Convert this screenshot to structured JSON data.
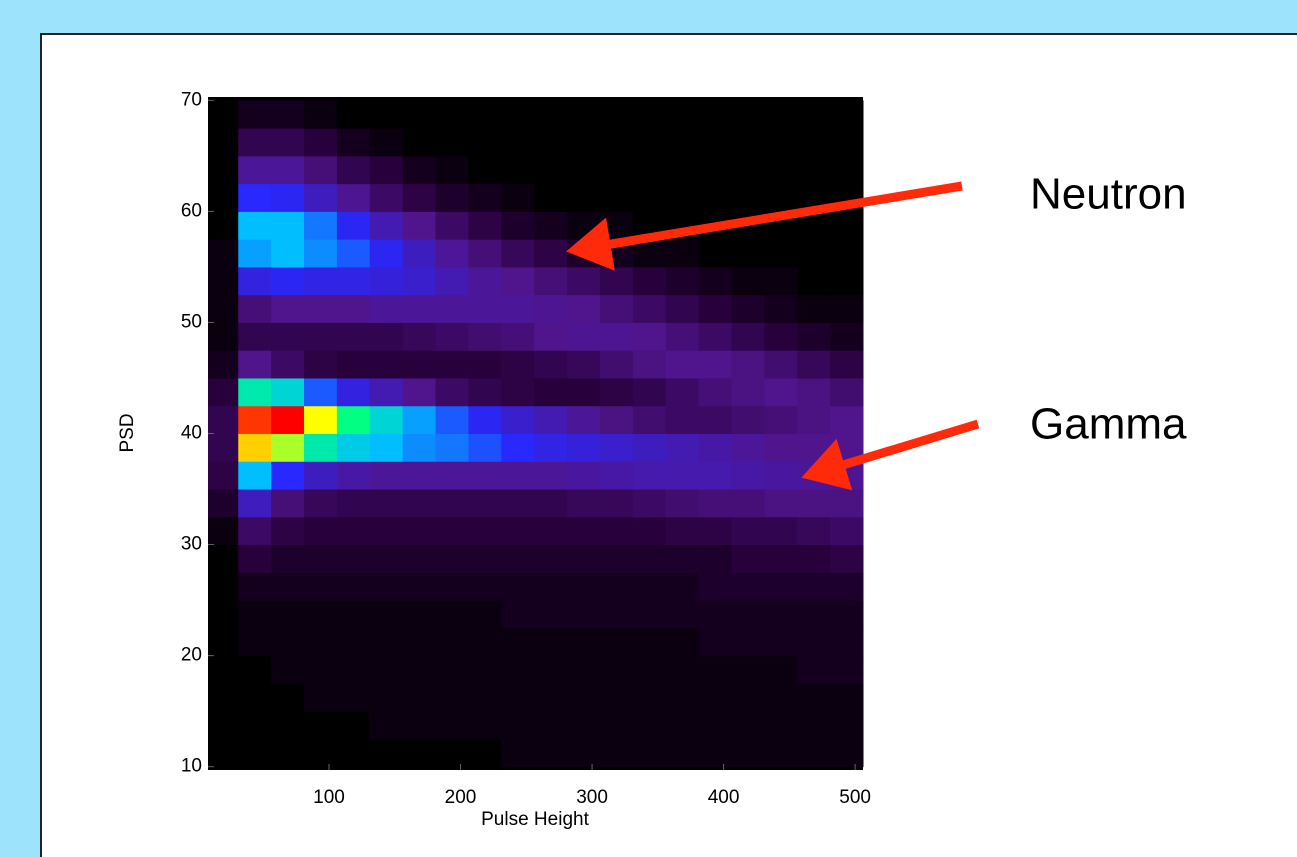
{
  "chart_data": {
    "type": "heatmap",
    "xlabel": "Pulse Height",
    "ylabel": "PSD",
    "xlim": [
      8,
      506
    ],
    "ylim": [
      9.7,
      70.3
    ],
    "xticks": [
      100,
      200,
      300,
      400,
      500
    ],
    "yticks": [
      10,
      20,
      30,
      40,
      50,
      60,
      70
    ],
    "zlim": [
      0,
      100
    ],
    "x_edges": [
      8,
      31,
      56,
      81,
      106,
      131,
      156,
      181,
      206,
      231,
      256,
      281,
      306,
      331,
      356,
      381,
      406,
      431,
      456,
      481,
      506
    ],
    "y_edges": [
      10,
      12.5,
      15,
      17.5,
      20,
      22.5,
      25,
      27.5,
      30,
      32.5,
      35,
      37.5,
      40,
      42.5,
      45,
      47.5,
      50,
      52.5,
      55,
      57.5,
      60,
      62.5,
      65,
      67.5,
      70
    ],
    "z": [
      [
        0,
        0,
        0,
        0,
        0,
        0,
        0,
        0,
        0,
        1,
        1,
        1,
        1,
        1,
        1,
        1,
        1,
        1,
        1,
        1
      ],
      [
        0,
        0,
        0,
        0,
        0,
        1,
        1,
        1,
        1,
        1,
        1,
        1,
        1,
        1,
        1,
        1,
        1,
        1,
        1,
        1
      ],
      [
        0,
        0,
        0,
        1,
        1,
        1,
        1,
        1,
        1,
        1,
        1,
        1,
        1,
        1,
        1,
        1,
        1,
        1,
        1,
        1
      ],
      [
        0,
        0,
        1,
        1,
        1,
        1,
        1,
        1,
        1,
        1,
        1,
        1,
        1,
        1,
        1,
        1,
        1,
        1,
        2,
        2
      ],
      [
        0,
        1,
        1,
        1,
        1,
        1,
        1,
        1,
        1,
        1,
        1,
        1,
        1,
        1,
        1,
        2,
        2,
        2,
        2,
        2
      ],
      [
        0,
        1,
        1,
        1,
        1,
        1,
        1,
        1,
        1,
        2,
        2,
        2,
        2,
        2,
        2,
        2,
        2,
        2,
        2,
        2
      ],
      [
        0,
        2,
        2,
        2,
        2,
        2,
        2,
        2,
        2,
        2,
        2,
        2,
        2,
        2,
        2,
        3,
        3,
        3,
        3,
        3
      ],
      [
        0,
        4,
        3,
        3,
        3,
        3,
        3,
        3,
        3,
        3,
        3,
        3,
        3,
        3,
        3,
        3,
        4,
        4,
        4,
        5
      ],
      [
        1,
        8,
        5,
        4,
        4,
        4,
        4,
        4,
        4,
        4,
        4,
        4,
        4,
        4,
        5,
        5,
        6,
        6,
        7,
        8
      ],
      [
        3,
        20,
        10,
        7,
        6,
        6,
        6,
        6,
        6,
        6,
        6,
        7,
        7,
        8,
        9,
        10,
        10,
        11,
        11,
        11
      ],
      [
        5,
        45,
        30,
        20,
        16,
        14,
        14,
        14,
        14,
        14,
        14,
        15,
        16,
        17,
        17,
        17,
        16,
        15,
        14,
        13
      ],
      [
        6,
        80,
        70,
        55,
        48,
        45,
        40,
        38,
        34,
        30,
        26,
        24,
        22,
        20,
        18,
        16,
        14,
        12,
        12,
        12
      ],
      [
        6,
        95,
        100,
        75,
        60,
        50,
        42,
        35,
        28,
        22,
        18,
        14,
        11,
        9,
        8,
        8,
        9,
        10,
        11,
        12
      ],
      [
        4,
        55,
        50,
        35,
        25,
        18,
        12,
        8,
        6,
        5,
        4,
        4,
        5,
        6,
        8,
        10,
        11,
        12,
        11,
        9
      ],
      [
        2,
        12,
        8,
        5,
        4,
        4,
        4,
        4,
        4,
        5,
        6,
        7,
        9,
        11,
        12,
        12,
        11,
        9,
        7,
        5
      ],
      [
        1,
        6,
        6,
        6,
        6,
        6,
        7,
        8,
        9,
        10,
        12,
        13,
        13,
        12,
        10,
        8,
        6,
        4,
        3,
        2
      ],
      [
        1,
        10,
        12,
        12,
        12,
        14,
        14,
        14,
        14,
        14,
        13,
        12,
        10,
        8,
        6,
        4,
        3,
        2,
        1,
        1
      ],
      [
        1,
        25,
        28,
        26,
        26,
        24,
        22,
        18,
        14,
        12,
        10,
        8,
        6,
        4,
        3,
        2,
        1,
        1,
        0,
        0
      ],
      [
        1,
        42,
        45,
        40,
        35,
        28,
        20,
        14,
        10,
        7,
        5,
        3,
        2,
        1,
        1,
        0,
        0,
        0,
        0,
        0
      ],
      [
        0,
        45,
        45,
        38,
        28,
        18,
        12,
        8,
        5,
        3,
        2,
        1,
        1,
        0,
        0,
        0,
        0,
        0,
        0,
        0
      ],
      [
        0,
        30,
        28,
        20,
        13,
        8,
        5,
        3,
        2,
        1,
        0,
        0,
        0,
        0,
        0,
        0,
        0,
        0,
        0,
        0
      ],
      [
        0,
        14,
        14,
        10,
        6,
        4,
        2,
        1,
        0,
        0,
        0,
        0,
        0,
        0,
        0,
        0,
        0,
        0,
        0,
        0
      ],
      [
        0,
        6,
        6,
        4,
        2,
        1,
        0,
        0,
        0,
        0,
        0,
        0,
        0,
        0,
        0,
        0,
        0,
        0,
        0,
        0
      ],
      [
        0,
        2,
        2,
        1,
        0,
        0,
        0,
        0,
        0,
        0,
        0,
        0,
        0,
        0,
        0,
        0,
        0,
        0,
        0,
        0
      ]
    ],
    "annotations": [
      "Neutron",
      "Gamma"
    ]
  }
}
